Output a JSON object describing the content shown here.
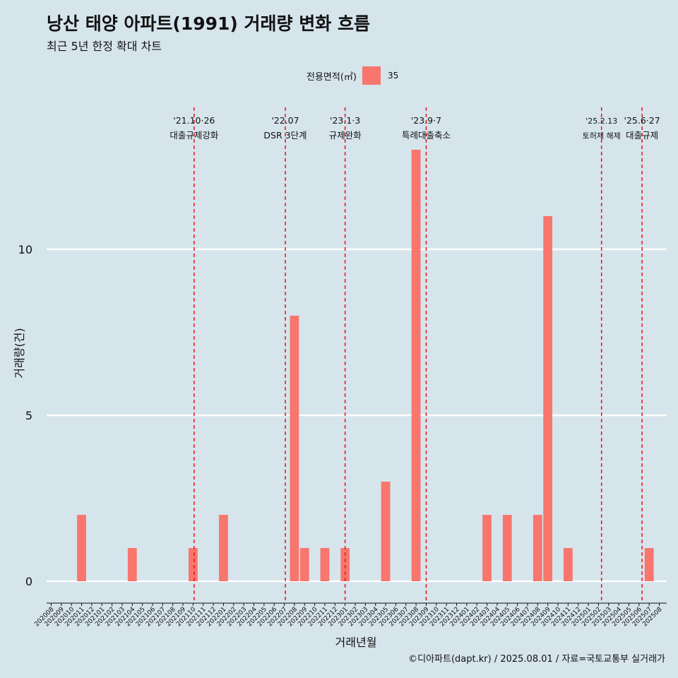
{
  "title": "낭산 태양 아파트(1991) 거래량 변화 흐름",
  "subtitle": "최근 5년 한정 확대 차트",
  "caption": "©디아파트(dapt.kr) / 2025.08.01 / 자료=국토교통부 실거래가",
  "legend": {
    "title": "전용면적(㎡)",
    "items": [
      {
        "label": "35",
        "color": "#f8766d"
      }
    ]
  },
  "chart_data": {
    "type": "bar",
    "xlabel": "거래년월",
    "ylabel": "거래량(건)",
    "ylim": [
      0,
      13.7
    ],
    "yticks": [
      0,
      5,
      10
    ],
    "grid": "horizontal",
    "legend_position": "top",
    "categories": [
      "202008",
      "202009",
      "202010",
      "202011",
      "202012",
      "202101",
      "202102",
      "202103",
      "202104",
      "202105",
      "202106",
      "202107",
      "202108",
      "202109",
      "202110",
      "202111",
      "202112",
      "202201",
      "202202",
      "202203",
      "202204",
      "202205",
      "202206",
      "202207",
      "202208",
      "202209",
      "202210",
      "202211",
      "202212",
      "202301",
      "202302",
      "202303",
      "202304",
      "202305",
      "202306",
      "202307",
      "202308",
      "202309",
      "202310",
      "202311",
      "202312",
      "202401",
      "202402",
      "202403",
      "202404",
      "202405",
      "202406",
      "202407",
      "202408",
      "202409",
      "202410",
      "202411",
      "202412",
      "202501",
      "202502",
      "202503",
      "202504",
      "202505",
      "202506",
      "202507",
      "202508"
    ],
    "series": [
      {
        "name": "35",
        "color": "#f8766d",
        "values": [
          0,
          0,
          0,
          2,
          0,
          0,
          0,
          0,
          1,
          0,
          0,
          0,
          0,
          0,
          1,
          0,
          0,
          2,
          0,
          0,
          0,
          0,
          0,
          0,
          8,
          1,
          0,
          1,
          0,
          1,
          0,
          0,
          0,
          3,
          0,
          0,
          13,
          0,
          0,
          0,
          0,
          0,
          0,
          2,
          0,
          2,
          0,
          0,
          2,
          11,
          0,
          1,
          0,
          0,
          0,
          0,
          0,
          0,
          0,
          1,
          0
        ]
      }
    ],
    "events": [
      {
        "date": "'21.10·26",
        "label": "대출규제강화",
        "at": "202110",
        "offset": 0.1
      },
      {
        "date": "'22.07",
        "label": "DSR 3단계",
        "at": "202207",
        "offset": 0.1
      },
      {
        "date": "'23.1·3",
        "label": "규제완화",
        "at": "202301",
        "offset": 0.0
      },
      {
        "date": "'23.9·7",
        "label": "특례대출축소",
        "at": "202309",
        "offset": 0.0
      },
      {
        "date": "'25.2.13",
        "label": "토허제 해제",
        "at": "202502",
        "offset": 0.3,
        "small": true
      },
      {
        "date": "'25.6·27",
        "label": "대출규제",
        "at": "202506",
        "offset": 0.3
      }
    ]
  }
}
